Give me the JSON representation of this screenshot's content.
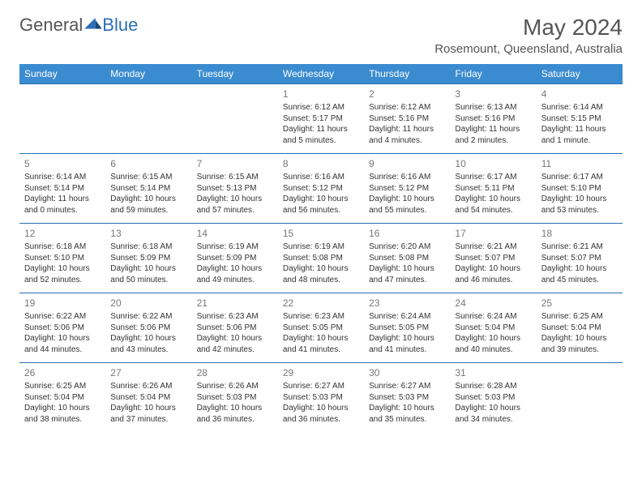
{
  "logo": {
    "part1": "General",
    "part2": "Blue"
  },
  "title": "May 2024",
  "location": "Rosemount, Queensland, Australia",
  "colors": {
    "header_bg": "#3a8bd0",
    "header_fg": "#ffffff",
    "border": "#2a6fb5",
    "text": "#333333",
    "daynum": "#777777",
    "logo_gray": "#555555",
    "logo_blue": "#2a6fb5"
  },
  "typography": {
    "title_fontsize": 28,
    "location_fontsize": 15,
    "dayheader_fontsize": 12,
    "daynum_fontsize": 12,
    "cell_fontsize": 10
  },
  "days_of_week": [
    "Sunday",
    "Monday",
    "Tuesday",
    "Wednesday",
    "Thursday",
    "Friday",
    "Saturday"
  ],
  "weeks": [
    [
      null,
      null,
      null,
      {
        "n": "1",
        "sunrise": "6:12 AM",
        "sunset": "5:17 PM",
        "daylight": "11 hours and 5 minutes."
      },
      {
        "n": "2",
        "sunrise": "6:12 AM",
        "sunset": "5:16 PM",
        "daylight": "11 hours and 4 minutes."
      },
      {
        "n": "3",
        "sunrise": "6:13 AM",
        "sunset": "5:16 PM",
        "daylight": "11 hours and 2 minutes."
      },
      {
        "n": "4",
        "sunrise": "6:14 AM",
        "sunset": "5:15 PM",
        "daylight": "11 hours and 1 minute."
      }
    ],
    [
      {
        "n": "5",
        "sunrise": "6:14 AM",
        "sunset": "5:14 PM",
        "daylight": "11 hours and 0 minutes."
      },
      {
        "n": "6",
        "sunrise": "6:15 AM",
        "sunset": "5:14 PM",
        "daylight": "10 hours and 59 minutes."
      },
      {
        "n": "7",
        "sunrise": "6:15 AM",
        "sunset": "5:13 PM",
        "daylight": "10 hours and 57 minutes."
      },
      {
        "n": "8",
        "sunrise": "6:16 AM",
        "sunset": "5:12 PM",
        "daylight": "10 hours and 56 minutes."
      },
      {
        "n": "9",
        "sunrise": "6:16 AM",
        "sunset": "5:12 PM",
        "daylight": "10 hours and 55 minutes."
      },
      {
        "n": "10",
        "sunrise": "6:17 AM",
        "sunset": "5:11 PM",
        "daylight": "10 hours and 54 minutes."
      },
      {
        "n": "11",
        "sunrise": "6:17 AM",
        "sunset": "5:10 PM",
        "daylight": "10 hours and 53 minutes."
      }
    ],
    [
      {
        "n": "12",
        "sunrise": "6:18 AM",
        "sunset": "5:10 PM",
        "daylight": "10 hours and 52 minutes."
      },
      {
        "n": "13",
        "sunrise": "6:18 AM",
        "sunset": "5:09 PM",
        "daylight": "10 hours and 50 minutes."
      },
      {
        "n": "14",
        "sunrise": "6:19 AM",
        "sunset": "5:09 PM",
        "daylight": "10 hours and 49 minutes."
      },
      {
        "n": "15",
        "sunrise": "6:19 AM",
        "sunset": "5:08 PM",
        "daylight": "10 hours and 48 minutes."
      },
      {
        "n": "16",
        "sunrise": "6:20 AM",
        "sunset": "5:08 PM",
        "daylight": "10 hours and 47 minutes."
      },
      {
        "n": "17",
        "sunrise": "6:21 AM",
        "sunset": "5:07 PM",
        "daylight": "10 hours and 46 minutes."
      },
      {
        "n": "18",
        "sunrise": "6:21 AM",
        "sunset": "5:07 PM",
        "daylight": "10 hours and 45 minutes."
      }
    ],
    [
      {
        "n": "19",
        "sunrise": "6:22 AM",
        "sunset": "5:06 PM",
        "daylight": "10 hours and 44 minutes."
      },
      {
        "n": "20",
        "sunrise": "6:22 AM",
        "sunset": "5:06 PM",
        "daylight": "10 hours and 43 minutes."
      },
      {
        "n": "21",
        "sunrise": "6:23 AM",
        "sunset": "5:06 PM",
        "daylight": "10 hours and 42 minutes."
      },
      {
        "n": "22",
        "sunrise": "6:23 AM",
        "sunset": "5:05 PM",
        "daylight": "10 hours and 41 minutes."
      },
      {
        "n": "23",
        "sunrise": "6:24 AM",
        "sunset": "5:05 PM",
        "daylight": "10 hours and 41 minutes."
      },
      {
        "n": "24",
        "sunrise": "6:24 AM",
        "sunset": "5:04 PM",
        "daylight": "10 hours and 40 minutes."
      },
      {
        "n": "25",
        "sunrise": "6:25 AM",
        "sunset": "5:04 PM",
        "daylight": "10 hours and 39 minutes."
      }
    ],
    [
      {
        "n": "26",
        "sunrise": "6:25 AM",
        "sunset": "5:04 PM",
        "daylight": "10 hours and 38 minutes."
      },
      {
        "n": "27",
        "sunrise": "6:26 AM",
        "sunset": "5:04 PM",
        "daylight": "10 hours and 37 minutes."
      },
      {
        "n": "28",
        "sunrise": "6:26 AM",
        "sunset": "5:03 PM",
        "daylight": "10 hours and 36 minutes."
      },
      {
        "n": "29",
        "sunrise": "6:27 AM",
        "sunset": "5:03 PM",
        "daylight": "10 hours and 36 minutes."
      },
      {
        "n": "30",
        "sunrise": "6:27 AM",
        "sunset": "5:03 PM",
        "daylight": "10 hours and 35 minutes."
      },
      {
        "n": "31",
        "sunrise": "6:28 AM",
        "sunset": "5:03 PM",
        "daylight": "10 hours and 34 minutes."
      },
      null
    ]
  ],
  "labels": {
    "sunrise": "Sunrise: ",
    "sunset": "Sunset: ",
    "daylight": "Daylight: "
  }
}
